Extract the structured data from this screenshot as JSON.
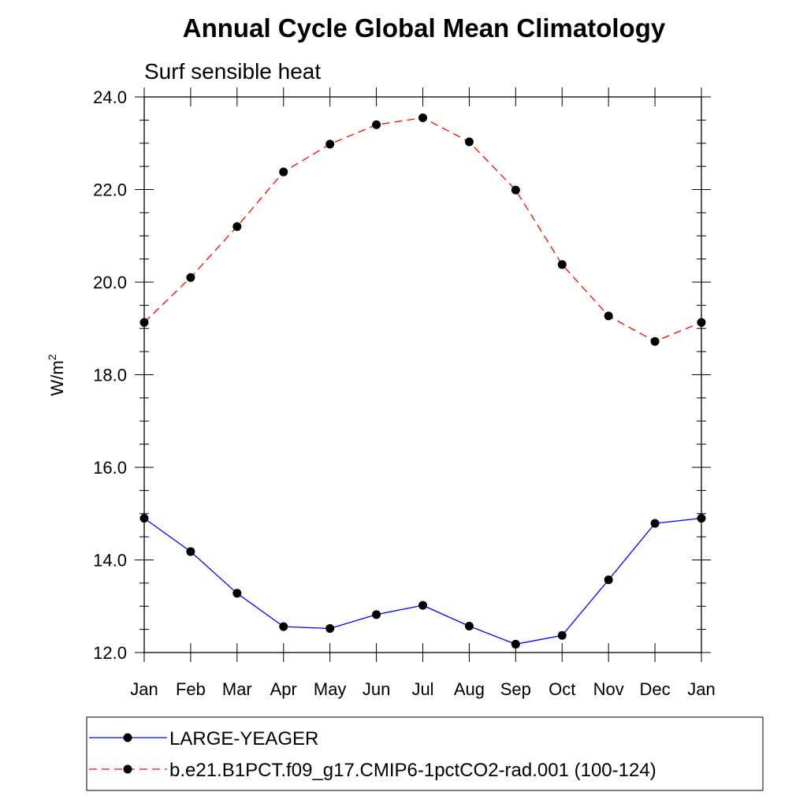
{
  "chart_data": {
    "type": "line",
    "title": "Annual Cycle Global Mean Climatology",
    "subtitle": "Surf sensible heat",
    "ylabel": "W/m",
    "ylabel_superscript": "2",
    "xlabel": "",
    "categories": [
      "Jan",
      "Feb",
      "Mar",
      "Apr",
      "May",
      "Jun",
      "Jul",
      "Aug",
      "Sep",
      "Oct",
      "Nov",
      "Dec",
      "Jan"
    ],
    "ylim": [
      12.0,
      24.0
    ],
    "yticks": [
      "12.0",
      "14.0",
      "16.0",
      "18.0",
      "20.0",
      "22.0",
      "24.0"
    ],
    "ytick_values": [
      12,
      14,
      16,
      18,
      20,
      22,
      24
    ],
    "series": [
      {
        "name": "LARGE-YEAGER",
        "color": "#0000ff",
        "dashed": false,
        "values": [
          14.9,
          14.18,
          13.28,
          12.56,
          12.52,
          12.82,
          13.02,
          12.57,
          12.18,
          12.37,
          13.57,
          14.79,
          14.9
        ]
      },
      {
        "name": "b.e21.B1PCT.f09_g17.CMIP6-1pctCO2-rad.001 (100-124)",
        "color": "#ff0000",
        "dashed": true,
        "values": [
          19.13,
          20.1,
          21.2,
          22.38,
          22.98,
          23.4,
          23.55,
          23.03,
          21.99,
          20.38,
          19.27,
          18.72,
          19.13
        ]
      }
    ]
  }
}
